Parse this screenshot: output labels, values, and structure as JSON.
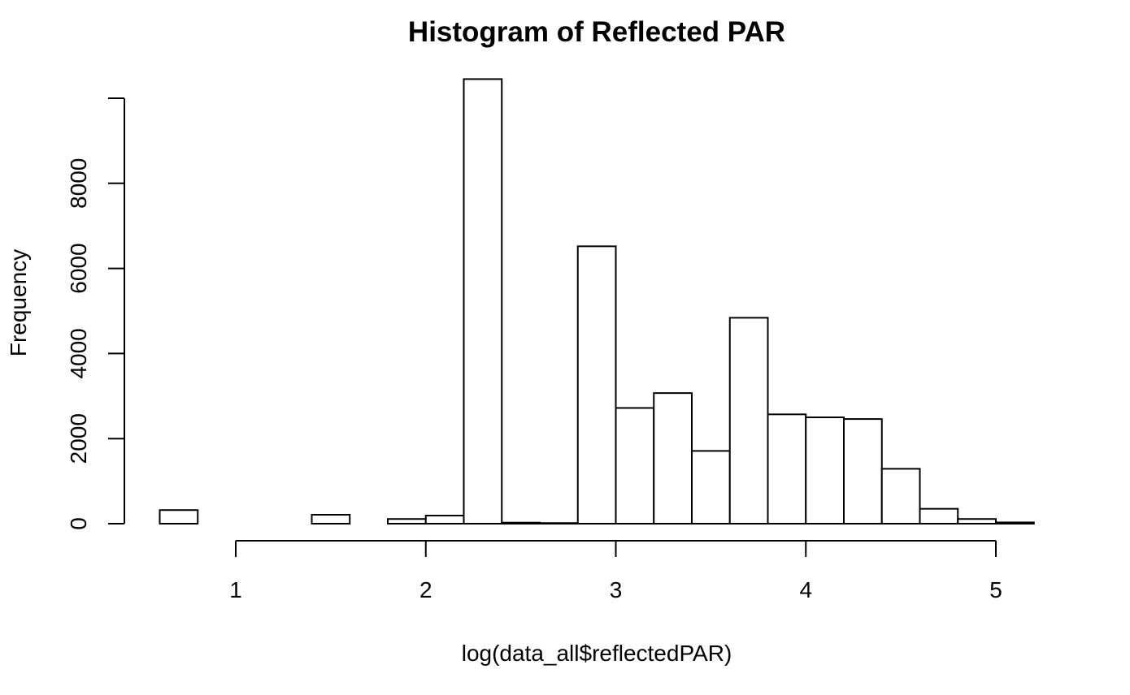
{
  "chart_data": {
    "type": "bar",
    "title": "Histogram of Reflected PAR",
    "xlabel": "log(data_all$reflectedPAR)",
    "ylabel": "Frequency",
    "x_bin_edges": [
      0.6,
      0.8,
      1.0,
      1.2,
      1.4,
      1.6,
      1.8,
      2.0,
      2.2,
      2.4,
      2.6,
      2.8,
      3.0,
      3.2,
      3.4,
      3.6,
      3.8,
      4.0,
      4.2,
      4.4,
      4.6,
      4.8,
      5.0,
      5.2
    ],
    "values": [
      320,
      0,
      0,
      0,
      210,
      0,
      110,
      190,
      10450,
      25,
      15,
      6520,
      2720,
      3070,
      1710,
      4840,
      2570,
      2500,
      2460,
      1290,
      350,
      110,
      30
    ],
    "x_ticks": [
      1,
      2,
      3,
      4,
      5
    ],
    "x_tick_labels": [
      "1",
      "2",
      "3",
      "4",
      "5"
    ],
    "y_ticks": [
      0,
      2000,
      4000,
      6000,
      8000,
      10000
    ],
    "y_tick_labels": [
      "0",
      "2000",
      "4000",
      "6000",
      "8000",
      ""
    ],
    "xlim": [
      1,
      5
    ],
    "ylim": [
      0,
      10000
    ],
    "grid": false,
    "legend": "none",
    "bar_fill": "#ffffff",
    "bar_stroke": "#000000"
  }
}
